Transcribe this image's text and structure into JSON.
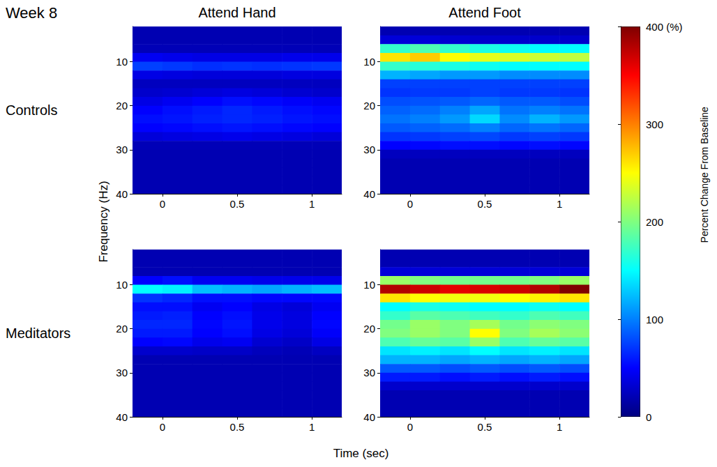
{
  "title": "Week 8",
  "columns": [
    "Attend Hand",
    "Attend Foot"
  ],
  "rows": [
    "Controls",
    "Meditators"
  ],
  "x_label": "Time (sec)",
  "y_label": "Frequency (Hz)",
  "colorbar": {
    "label": "Percent Change From Baseline",
    "clim": [
      0,
      400
    ],
    "ticks": [
      0,
      100,
      200,
      300,
      {
        "value": 400,
        "label": "400 (%)"
      }
    ]
  },
  "chart_data": [
    {
      "type": "heatmap",
      "xlim": [
        -0.2,
        1.2
      ],
      "xticks": [
        0,
        0.5,
        1
      ],
      "ylim": [
        40,
        2
      ],
      "yticks": [
        10,
        20,
        30,
        40
      ],
      "x_bins": [
        -0.2,
        0,
        0.2,
        0.4,
        0.6,
        0.8,
        1,
        1.2
      ],
      "y_bins": [
        2,
        4,
        6,
        8,
        10,
        12,
        14,
        16,
        18,
        20,
        22,
        24,
        26,
        28,
        30,
        32,
        34,
        36,
        38,
        40
      ],
      "cells": [
        [
          20,
          20,
          20,
          20,
          20,
          20,
          20
        ],
        [
          20,
          20,
          20,
          20,
          20,
          20,
          20
        ],
        [
          22,
          22,
          22,
          22,
          22,
          22,
          22
        ],
        [
          45,
          42,
          40,
          40,
          40,
          42,
          42
        ],
        [
          75,
          72,
          68,
          70,
          68,
          70,
          72
        ],
        [
          40,
          38,
          36,
          36,
          36,
          38,
          38
        ],
        [
          25,
          25,
          25,
          25,
          25,
          25,
          25
        ],
        [
          30,
          32,
          35,
          38,
          35,
          32,
          30
        ],
        [
          40,
          45,
          50,
          55,
          52,
          48,
          45
        ],
        [
          50,
          55,
          60,
          65,
          60,
          55,
          52
        ],
        [
          55,
          58,
          62,
          65,
          62,
          58,
          55
        ],
        [
          50,
          52,
          55,
          58,
          55,
          52,
          50
        ],
        [
          35,
          38,
          40,
          42,
          40,
          38,
          35
        ],
        [
          22,
          22,
          22,
          22,
          22,
          22,
          22
        ],
        [
          20,
          20,
          20,
          20,
          20,
          20,
          20
        ],
        [
          20,
          20,
          20,
          20,
          20,
          20,
          20
        ],
        [
          20,
          20,
          20,
          20,
          20,
          20,
          20
        ],
        [
          20,
          20,
          20,
          20,
          20,
          20,
          20
        ],
        [
          20,
          20,
          20,
          20,
          20,
          20,
          20
        ]
      ]
    },
    {
      "type": "heatmap",
      "xlim": [
        -0.2,
        1.2
      ],
      "xticks": [
        0,
        0.5,
        1
      ],
      "ylim": [
        40,
        2
      ],
      "yticks": [
        10,
        20,
        30,
        40
      ],
      "x_bins": [
        -0.2,
        0,
        0.2,
        0.4,
        0.6,
        0.8,
        1,
        1.2
      ],
      "y_bins": [
        2,
        4,
        6,
        8,
        10,
        12,
        14,
        16,
        18,
        20,
        22,
        24,
        26,
        28,
        30,
        32,
        34,
        36,
        38,
        40
      ],
      "cells": [
        [
          20,
          20,
          20,
          20,
          20,
          20,
          20
        ],
        [
          35,
          35,
          32,
          30,
          30,
          30,
          30
        ],
        [
          170,
          180,
          170,
          160,
          155,
          150,
          150
        ],
        [
          260,
          270,
          250,
          240,
          235,
          230,
          225
        ],
        [
          170,
          165,
          160,
          155,
          150,
          150,
          150
        ],
        [
          120,
          115,
          110,
          110,
          105,
          105,
          105
        ],
        [
          75,
          75,
          75,
          75,
          75,
          75,
          75
        ],
        [
          70,
          72,
          72,
          75,
          72,
          72,
          70
        ],
        [
          80,
          82,
          85,
          90,
          85,
          85,
          80
        ],
        [
          88,
          92,
          100,
          115,
          95,
          100,
          95
        ],
        [
          95,
          100,
          110,
          135,
          105,
          120,
          110
        ],
        [
          85,
          88,
          92,
          100,
          90,
          95,
          90
        ],
        [
          70,
          72,
          75,
          78,
          72,
          75,
          72
        ],
        [
          50,
          52,
          55,
          55,
          52,
          55,
          52
        ],
        [
          25,
          25,
          25,
          25,
          25,
          25,
          25
        ],
        [
          20,
          20,
          20,
          20,
          20,
          20,
          20
        ],
        [
          20,
          20,
          20,
          20,
          20,
          20,
          20
        ],
        [
          20,
          20,
          20,
          20,
          20,
          20,
          20
        ],
        [
          20,
          20,
          20,
          20,
          20,
          20,
          20
        ]
      ]
    },
    {
      "type": "heatmap",
      "xlim": [
        -0.2,
        1.2
      ],
      "xticks": [
        0,
        0.5,
        1
      ],
      "ylim": [
        40,
        2
      ],
      "yticks": [
        10,
        20,
        30,
        40
      ],
      "x_bins": [
        -0.2,
        0,
        0.2,
        0.4,
        0.6,
        0.8,
        1,
        1.2
      ],
      "y_bins": [
        2,
        4,
        6,
        8,
        10,
        12,
        14,
        16,
        18,
        20,
        22,
        24,
        26,
        28,
        30,
        32,
        34,
        36,
        38,
        40
      ],
      "cells": [
        [
          20,
          20,
          20,
          20,
          20,
          20,
          20
        ],
        [
          20,
          20,
          20,
          20,
          20,
          20,
          20
        ],
        [
          20,
          20,
          20,
          20,
          20,
          20,
          20
        ],
        [
          50,
          55,
          45,
          45,
          42,
          42,
          42
        ],
        [
          150,
          145,
          125,
          120,
          115,
          120,
          125
        ],
        [
          70,
          65,
          55,
          55,
          52,
          52,
          52
        ],
        [
          55,
          55,
          45,
          50,
          40,
          35,
          45
        ],
        [
          60,
          62,
          50,
          55,
          42,
          38,
          50
        ],
        [
          65,
          65,
          52,
          58,
          42,
          38,
          52
        ],
        [
          60,
          60,
          50,
          55,
          40,
          35,
          48
        ],
        [
          50,
          52,
          42,
          45,
          32,
          28,
          40
        ],
        [
          30,
          30,
          28,
          28,
          24,
          22,
          26
        ],
        [
          20,
          20,
          20,
          20,
          20,
          20,
          20
        ],
        [
          20,
          20,
          20,
          20,
          20,
          20,
          20
        ],
        [
          20,
          20,
          20,
          20,
          20,
          20,
          20
        ],
        [
          20,
          20,
          20,
          20,
          20,
          20,
          20
        ],
        [
          20,
          20,
          20,
          20,
          20,
          20,
          20
        ],
        [
          20,
          20,
          20,
          20,
          20,
          20,
          20
        ],
        [
          20,
          20,
          20,
          20,
          20,
          20,
          20
        ]
      ]
    },
    {
      "type": "heatmap",
      "xlim": [
        -0.2,
        1.2
      ],
      "xticks": [
        0,
        0.5,
        1
      ],
      "ylim": [
        40,
        2
      ],
      "yticks": [
        10,
        20,
        30,
        40
      ],
      "x_bins": [
        -0.2,
        0,
        0.2,
        0.4,
        0.6,
        0.8,
        1,
        1.2
      ],
      "y_bins": [
        2,
        4,
        6,
        8,
        10,
        12,
        14,
        16,
        18,
        20,
        22,
        24,
        26,
        28,
        30,
        32,
        34,
        36,
        38,
        40
      ],
      "cells": [
        [
          20,
          20,
          20,
          20,
          20,
          20,
          20
        ],
        [
          20,
          20,
          20,
          20,
          20,
          20,
          20
        ],
        [
          35,
          35,
          35,
          35,
          35,
          35,
          35
        ],
        [
          210,
          200,
          195,
          195,
          195,
          200,
          210
        ],
        [
          380,
          370,
          360,
          365,
          370,
          380,
          400
        ],
        [
          260,
          250,
          245,
          245,
          250,
          255,
          260
        ],
        [
          150,
          160,
          155,
          150,
          150,
          155,
          150
        ],
        [
          170,
          185,
          180,
          175,
          170,
          180,
          175
        ],
        [
          195,
          210,
          200,
          215,
          195,
          205,
          200
        ],
        [
          200,
          210,
          200,
          250,
          200,
          215,
          205
        ],
        [
          180,
          190,
          185,
          210,
          180,
          190,
          185
        ],
        [
          140,
          145,
          140,
          150,
          140,
          145,
          140
        ],
        [
          120,
          120,
          115,
          120,
          115,
          120,
          115
        ],
        [
          85,
          85,
          80,
          85,
          80,
          85,
          80
        ],
        [
          60,
          60,
          55,
          60,
          55,
          60,
          55
        ],
        [
          30,
          30,
          30,
          30,
          30,
          30,
          30
        ],
        [
          20,
          20,
          20,
          20,
          20,
          20,
          20
        ],
        [
          20,
          20,
          20,
          20,
          20,
          20,
          20
        ],
        [
          20,
          20,
          20,
          20,
          20,
          20,
          20
        ]
      ]
    }
  ]
}
